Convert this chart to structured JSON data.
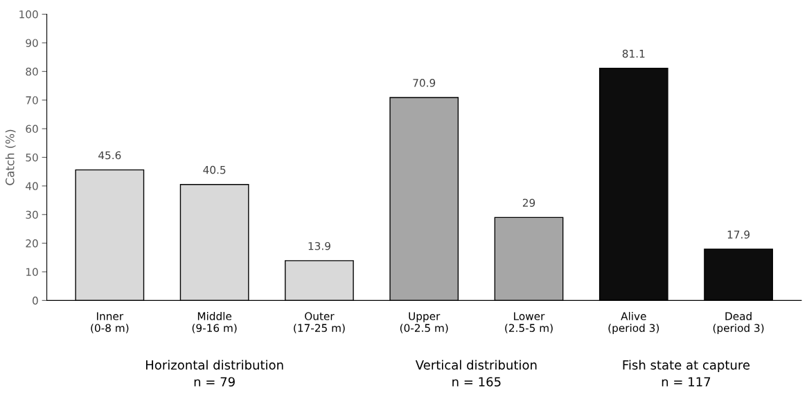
{
  "chart_data": {
    "type": "bar",
    "ylabel": "Catch (%)",
    "categories": [
      "Inner\n(0-8 m)",
      "Middle\n(9-16 m)",
      "Outer\n(17-25 m)",
      "Upper\n(0-2.5 m)",
      "Lower\n(2.5-5 m)",
      "Alive\n(period 3)",
      "Dead\n(period 3)"
    ],
    "values": [
      45.6,
      40.5,
      13.9,
      70.9,
      29,
      81.1,
      17.9
    ],
    "value_labels": [
      "45.6",
      "40.5",
      "13.9",
      "70.9",
      "29",
      "81.1",
      "17.9"
    ],
    "colors": [
      "#d9d9d9",
      "#d9d9d9",
      "#d9d9d9",
      "#a6a6a6",
      "#a6a6a6",
      "#0d0d0d",
      "#0d0d0d"
    ],
    "ylim": [
      0,
      100
    ],
    "yticks": [
      0,
      10,
      20,
      30,
      40,
      50,
      60,
      70,
      80,
      90,
      100
    ],
    "grid": false,
    "legend": false,
    "annotations": [
      "Horizontal distribution\nn = 79",
      "Vertical distribution\nn = 165",
      "Fish state at capture\nn = 117"
    ]
  }
}
